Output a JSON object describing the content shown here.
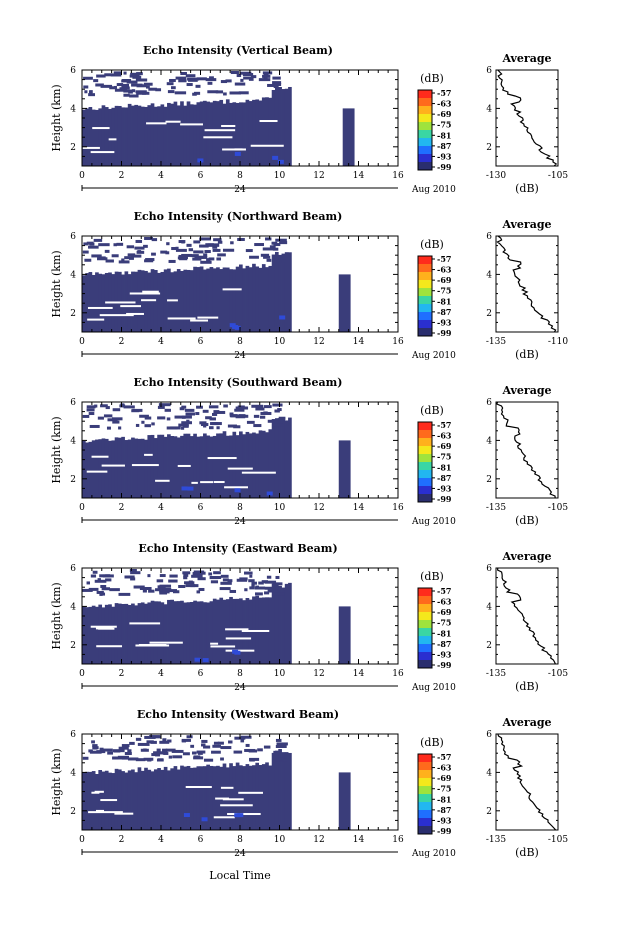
{
  "figure": {
    "xlabel": "Local Time",
    "day_label": "24",
    "date_label": "Aug 2010",
    "ylabel": "Height (km)",
    "colorbar_unit": "(dB)",
    "colorbar_ticks": [
      "-57",
      "-63",
      "-69",
      "-75",
      "-81",
      "-87",
      "-93",
      "-99"
    ],
    "profile_title": "Average",
    "profile_xlabel": "(dB)"
  },
  "chart_data": [
    {
      "type": "heatmap",
      "title": "Echo Intensity (Vertical Beam)",
      "xlabel": "Local Time",
      "ylabel": "Height (km)",
      "xlim": [
        0,
        16
      ],
      "ylim": [
        1,
        6
      ],
      "x_ticks": [
        "0",
        "2",
        "4",
        "6",
        "8",
        "10",
        "12",
        "14",
        "16"
      ],
      "y_ticks": [
        "2",
        "4",
        "6"
      ],
      "colorbar": {
        "unit": "dB",
        "range": [
          -99,
          -57
        ],
        "ticks": [
          -57,
          -63,
          -69,
          -75,
          -81,
          -87,
          -93,
          -99
        ]
      },
      "data_gap_hours": [
        10.6,
        13.2
      ],
      "profile": {
        "title": "Average",
        "xlabel": "(dB)",
        "xlim": [
          -130,
          -105
        ],
        "x_ticks": [
          "-130",
          "-105"
        ],
        "heights": [
          1,
          1.5,
          2,
          2.5,
          3,
          3.5,
          4,
          4.5,
          5,
          5.5,
          6
        ],
        "values": [
          -106,
          -109,
          -113,
          -116,
          -118,
          -120,
          -122,
          -124,
          -127,
          -128,
          -129
        ]
      }
    },
    {
      "type": "heatmap",
      "title": "Echo Intensity (Northward Beam)",
      "xlabel": "Local Time",
      "ylabel": "Height (km)",
      "xlim": [
        0,
        16
      ],
      "ylim": [
        1,
        6
      ],
      "x_ticks": [
        "0",
        "2",
        "4",
        "6",
        "8",
        "10",
        "12",
        "14",
        "16"
      ],
      "y_ticks": [
        "2",
        "4",
        "6"
      ],
      "colorbar": {
        "unit": "dB",
        "range": [
          -99,
          -57
        ],
        "ticks": [
          -57,
          -63,
          -69,
          -75,
          -81,
          -87,
          -93,
          -99
        ]
      },
      "data_gap_hours": [
        10.6,
        13.0
      ],
      "profile": {
        "title": "Average",
        "xlabel": "(dB)",
        "xlim": [
          -135,
          -110
        ],
        "x_ticks": [
          "-135",
          "-110"
        ],
        "heights": [
          1,
          1.5,
          2,
          2.5,
          3,
          3.5,
          4,
          4.5,
          5,
          5.5,
          6
        ],
        "values": [
          -111,
          -114,
          -118,
          -121,
          -123,
          -125,
          -127,
          -129,
          -131,
          -133,
          -134
        ]
      }
    },
    {
      "type": "heatmap",
      "title": "Echo Intensity (Southward Beam)",
      "xlabel": "Local Time",
      "ylabel": "Height (km)",
      "xlim": [
        0,
        16
      ],
      "ylim": [
        1,
        6
      ],
      "x_ticks": [
        "0",
        "2",
        "4",
        "6",
        "8",
        "10",
        "12",
        "14",
        "16"
      ],
      "y_ticks": [
        "2",
        "4",
        "6"
      ],
      "colorbar": {
        "unit": "dB",
        "range": [
          -99,
          -57
        ],
        "ticks": [
          -57,
          -63,
          -69,
          -75,
          -81,
          -87,
          -93,
          -99
        ]
      },
      "data_gap_hours": [
        10.6,
        13.0
      ],
      "profile": {
        "title": "Average",
        "xlabel": "(dB)",
        "xlim": [
          -135,
          -105
        ],
        "x_ticks": [
          "-135",
          "-105"
        ],
        "heights": [
          1,
          1.5,
          2,
          2.5,
          3,
          3.5,
          4,
          4.5,
          5,
          5.5,
          6
        ],
        "values": [
          -106,
          -110,
          -114,
          -118,
          -121,
          -123,
          -125,
          -128,
          -130,
          -132,
          -134
        ]
      }
    },
    {
      "type": "heatmap",
      "title": "Echo Intensity (Eastward Beam)",
      "xlabel": "Local Time",
      "ylabel": "Height (km)",
      "xlim": [
        0,
        16
      ],
      "ylim": [
        1,
        6
      ],
      "x_ticks": [
        "0",
        "2",
        "4",
        "6",
        "8",
        "10",
        "12",
        "14",
        "16"
      ],
      "y_ticks": [
        "2",
        "4",
        "6"
      ],
      "colorbar": {
        "unit": "dB",
        "range": [
          -99,
          -57
        ],
        "ticks": [
          -57,
          -63,
          -69,
          -75,
          -81,
          -87,
          -93,
          -99
        ]
      },
      "data_gap_hours": [
        10.6,
        13.0
      ],
      "profile": {
        "title": "Average",
        "xlabel": "(dB)",
        "xlim": [
          -135,
          -105
        ],
        "x_ticks": [
          "-135",
          "-105"
        ],
        "heights": [
          1,
          1.5,
          2,
          2.5,
          3,
          3.5,
          4,
          4.5,
          5,
          5.5,
          6
        ],
        "values": [
          -106,
          -110,
          -114,
          -117,
          -120,
          -123,
          -125,
          -128,
          -130,
          -132,
          -134
        ]
      }
    },
    {
      "type": "heatmap",
      "title": "Echo Intensity (Westward Beam)",
      "xlabel": "Local Time",
      "ylabel": "Height (km)",
      "xlim": [
        0,
        16
      ],
      "ylim": [
        1,
        6
      ],
      "x_ticks": [
        "0",
        "2",
        "4",
        "6",
        "8",
        "10",
        "12",
        "14",
        "16"
      ],
      "y_ticks": [
        "2",
        "4",
        "6"
      ],
      "colorbar": {
        "unit": "dB",
        "range": [
          -99,
          -57
        ],
        "ticks": [
          -57,
          -63,
          -69,
          -75,
          -81,
          -87,
          -93,
          -99
        ]
      },
      "data_gap_hours": [
        10.6,
        13.0
      ],
      "profile": {
        "title": "Average",
        "xlabel": "(dB)",
        "xlim": [
          -135,
          -105
        ],
        "x_ticks": [
          "-135",
          "-105"
        ],
        "heights": [
          1,
          1.5,
          2,
          2.5,
          3,
          3.5,
          4,
          4.5,
          5,
          5.5,
          6
        ],
        "values": [
          -106,
          -110,
          -114,
          -117,
          -120,
          -123,
          -125,
          -128,
          -130,
          -132,
          -134
        ]
      }
    }
  ]
}
